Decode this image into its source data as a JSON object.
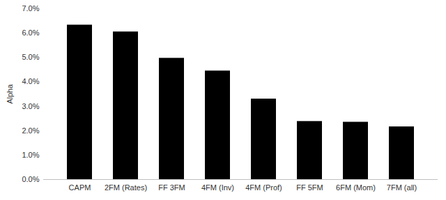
{
  "chart_data": {
    "type": "bar",
    "y_label": "Alpha",
    "categories": [
      "CAPM",
      "2FM (Rates)",
      "FF 3FM",
      "4FM (Inv)",
      "4FM (Prof)",
      "FF 5FM",
      "6FM (Mom)",
      "7FM (all)"
    ],
    "values": [
      6.33,
      6.05,
      4.97,
      4.45,
      3.3,
      2.38,
      2.35,
      2.16
    ],
    "color": "#000000",
    "ylim": [
      0,
      7
    ],
    "yticks": [
      {
        "value": 0,
        "label": "0.0%"
      },
      {
        "value": 1,
        "label": "1.0%"
      },
      {
        "value": 2,
        "label": "2.0%"
      },
      {
        "value": 3,
        "label": "3.0%"
      },
      {
        "value": 4,
        "label": "4.0%"
      },
      {
        "value": 5,
        "label": "5.0%"
      },
      {
        "value": 6,
        "label": "6.0%"
      },
      {
        "value": 7,
        "label": "7.0%"
      }
    ],
    "grid": false
  }
}
